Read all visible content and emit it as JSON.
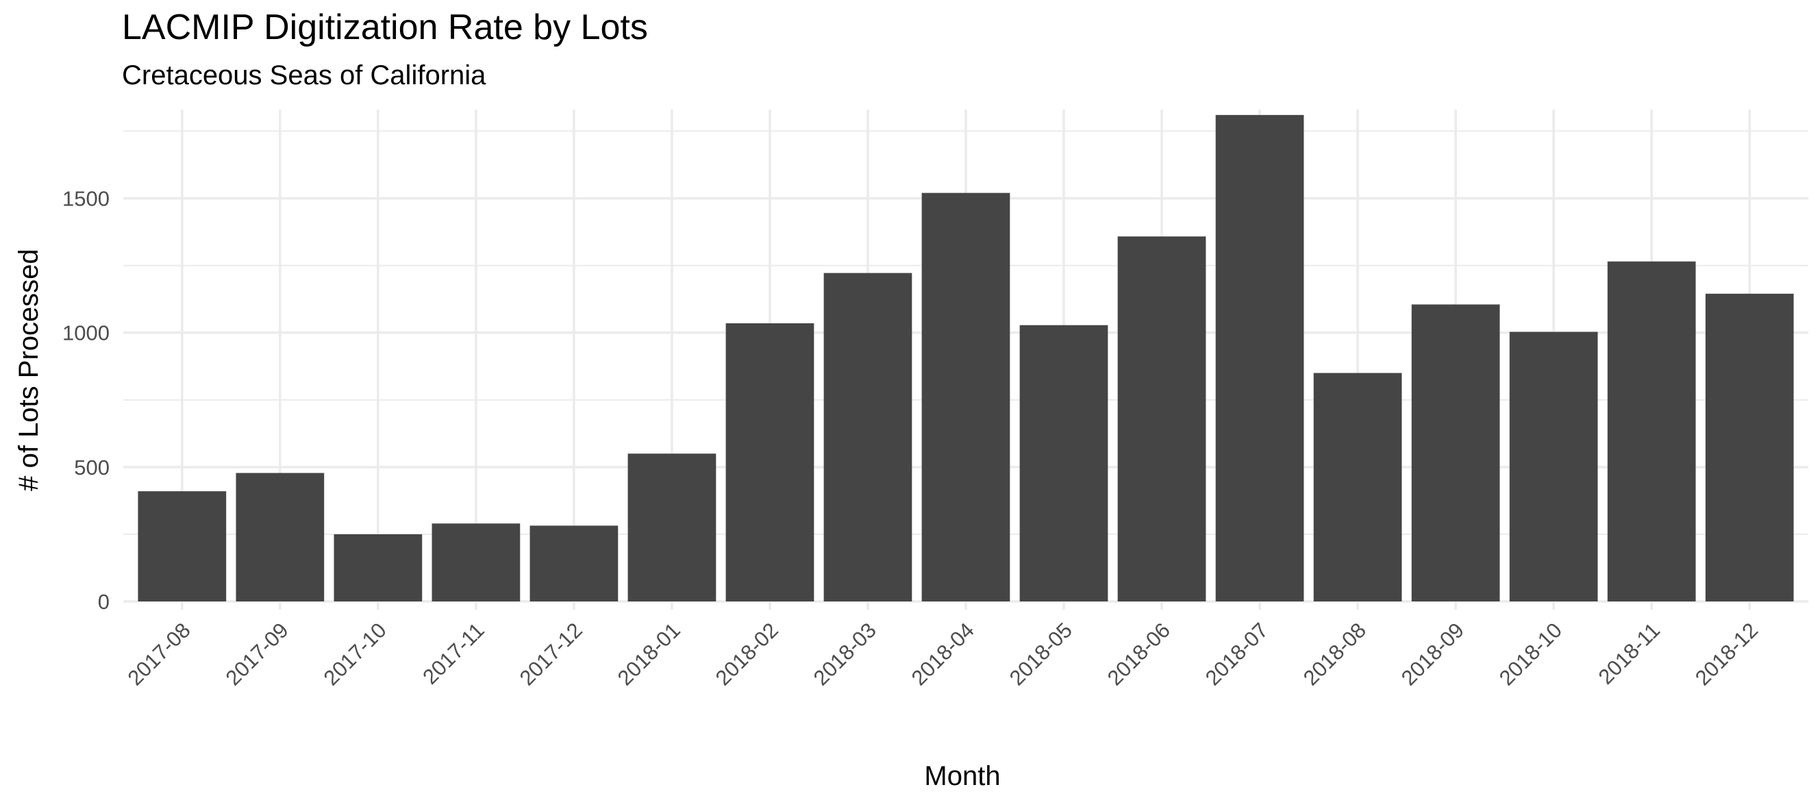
{
  "chart_data": {
    "type": "bar",
    "title": "LACMIP Digitization Rate by Lots",
    "subtitle": "Cretaceous Seas of California",
    "xlabel": "Month",
    "ylabel": "# of Lots Processed",
    "categories": [
      "2017-08",
      "2017-09",
      "2017-10",
      "2017-11",
      "2017-12",
      "2018-01",
      "2018-02",
      "2018-03",
      "2018-04",
      "2018-05",
      "2018-06",
      "2018-07",
      "2018-08",
      "2018-09",
      "2018-10",
      "2018-11",
      "2018-12"
    ],
    "values": [
      410,
      478,
      250,
      290,
      282,
      550,
      1035,
      1222,
      1520,
      1028,
      1358,
      1810,
      850,
      1105,
      1003,
      1265,
      1145
    ],
    "ylim": [
      0,
      1830
    ],
    "yticks": [
      0,
      500,
      1000,
      1500
    ],
    "y_minor_ticks": [
      250,
      750,
      1250,
      1750
    ],
    "bar_color": "#454545",
    "grid_color": "#ebebeb",
    "grid": true,
    "legend": "none"
  }
}
